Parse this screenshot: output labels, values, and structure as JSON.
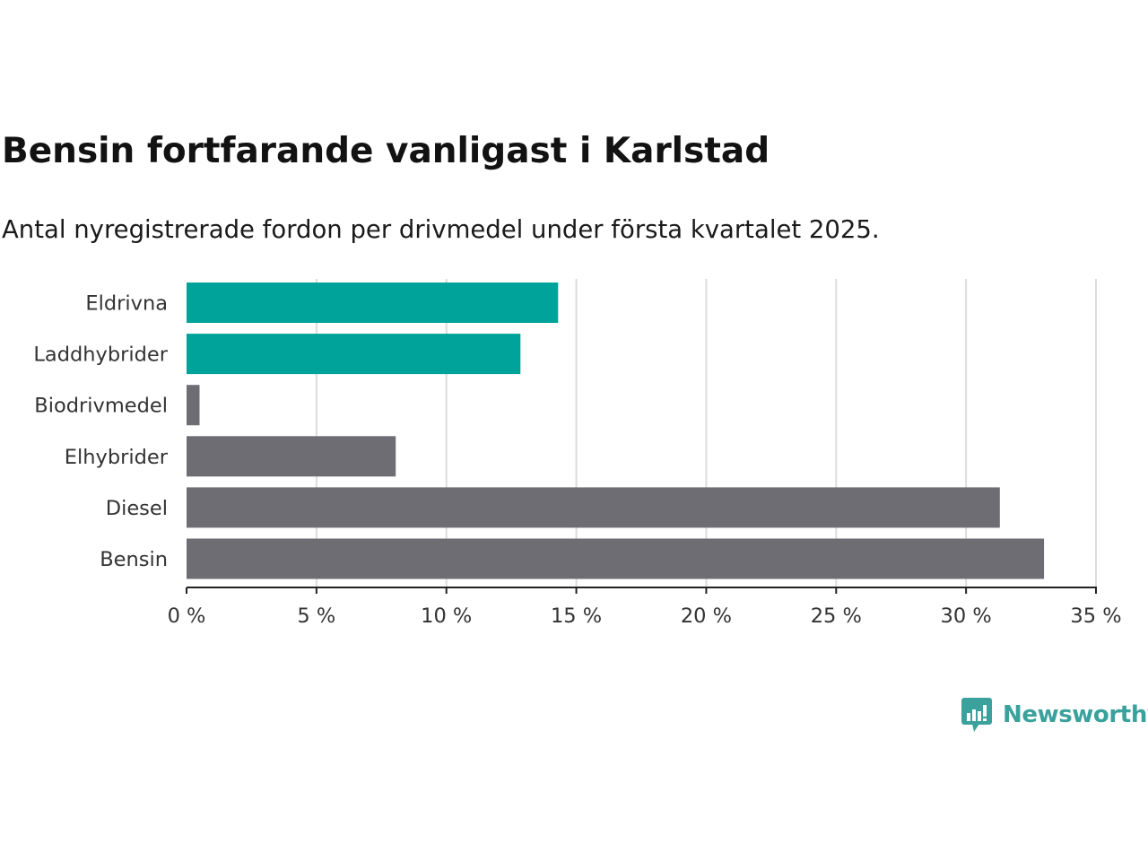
{
  "chart_data": {
    "type": "bar",
    "orientation": "horizontal",
    "title": "Bensin fortfarande vanligast i Karlstad",
    "subtitle": "Antal nyregistrerade fordon per drivmedel under första kvartalet 2025.",
    "categories": [
      "Eldrivna",
      "Laddhybrider",
      "Biodrivmedel",
      "Elhybrider",
      "Diesel",
      "Bensin"
    ],
    "values": [
      14.3,
      12.85,
      0.5,
      8.05,
      31.3,
      33.0
    ],
    "highlighted": [
      "Eldrivna",
      "Laddhybrider"
    ],
    "xlim": [
      0,
      35
    ],
    "xticks": [
      0,
      5,
      10,
      15,
      20,
      25,
      30,
      35
    ],
    "xtick_labels": [
      "0 %",
      "5 %",
      "10 %",
      "15 %",
      "20 %",
      "25 %",
      "30 %",
      "35 %"
    ],
    "xlabel": "",
    "ylabel": "",
    "grid": "vertical",
    "legend": "none"
  },
  "colors": {
    "highlight": "#00a39a",
    "default": "#6e6d74",
    "grid": "#dcdcdc",
    "axis": "#222222",
    "brand": "#3aa19c"
  },
  "brand": {
    "name": "Newsworthy",
    "icon": "newsworthy-logo-icon"
  }
}
